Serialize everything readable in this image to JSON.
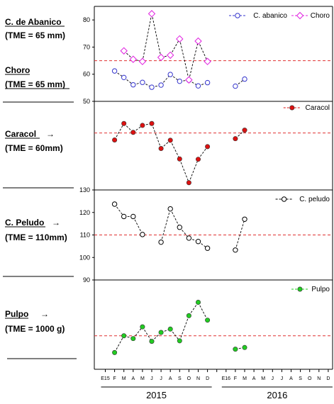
{
  "labels": {
    "abanico": "C. de Abanico",
    "abanico_tme": "(TME = 65 mm)",
    "choro": "Choro",
    "choro_tme": "(TME = 65 mm)",
    "caracol": "Caracol",
    "caracol_tme": "(TME = 60mm)",
    "peludo": "C. Peludo",
    "peludo_tme": "(TME = 110mm)",
    "pulpo": "Pulpo",
    "pulpo_tme": "(TME = 1000 g)",
    "arrow": "→"
  },
  "chart_data": {
    "type": "line",
    "months": [
      "E15",
      "F",
      "M",
      "A",
      "M",
      "J",
      "J",
      "A",
      "S",
      "O",
      "N",
      "D",
      "",
      "E16",
      "F",
      "M",
      "A",
      "M",
      "J",
      "J",
      "A",
      "S",
      "O",
      "N",
      "D"
    ],
    "years": [
      {
        "label": "2015",
        "from": 0,
        "to": 11
      },
      {
        "label": "2016",
        "from": 13,
        "to": 24
      }
    ],
    "panels": [
      {
        "id": "abanico-choro",
        "ylim": [
          50,
          85
        ],
        "yticks": [
          50,
          60,
          70,
          80
        ],
        "reference": 65,
        "series": [
          {
            "name": "C. abanico",
            "marker": "circle-open",
            "color": "#3333cc",
            "values": [
              null,
              61.2,
              58.8,
              56.1,
              57.0,
              55.2,
              56.0,
              59.9,
              57.4,
              57.8,
              55.7,
              56.9,
              null,
              null,
              55.6,
              58.2,
              null,
              null,
              null,
              null,
              null,
              null,
              null,
              null,
              null
            ]
          },
          {
            "name": "Choro",
            "marker": "diamond-open",
            "color": "#e020e0",
            "values": [
              null,
              null,
              68.6,
              65.5,
              64.7,
              82.3,
              66.2,
              67.0,
              73.0,
              57.9,
              72.2,
              64.7,
              null,
              null,
              null,
              null,
              null,
              null,
              null,
              null,
              null,
              null,
              null,
              null,
              null
            ]
          }
        ]
      },
      {
        "id": "caracol",
        "ylim": [
          null,
          null
        ],
        "yticks": [],
        "reference": 60,
        "series": [
          {
            "name": "Caracol",
            "marker": "circle-filled",
            "color": "#dd1111",
            "values": [
              null,
              57.8,
              63.0,
              60.2,
              62.4,
              63.0,
              55.1,
              57.7,
              51.8,
              44.3,
              51.7,
              55.7,
              null,
              null,
              58.2,
              60.9,
              null,
              null,
              null,
              null,
              null,
              null,
              null,
              null,
              null
            ]
          }
        ]
      },
      {
        "id": "peludo",
        "ylim": [
          90,
          130
        ],
        "yticks": [
          90,
          100,
          110,
          120,
          130
        ],
        "reference": 110,
        "series": [
          {
            "name": "C. peludo",
            "marker": "circle-open",
            "color": "#000000",
            "values": [
              null,
              123.7,
              118.2,
              118.2,
              110.2,
              null,
              106.8,
              121.6,
              113.4,
              108.6,
              107.1,
              104.1,
              null,
              null,
              103.3,
              117.0,
              null,
              null,
              null,
              null,
              null,
              null,
              null,
              null,
              null
            ]
          }
        ]
      },
      {
        "id": "pulpo",
        "ylim": [
          null,
          null
        ],
        "yticks": [],
        "reference": 1000,
        "series": [
          {
            "name": "Pulpo",
            "marker": "circle-filled",
            "color": "#22cc22",
            "values": [
              null,
              850,
              1000,
              975,
              1080,
              950,
              1030,
              1060,
              955,
              1180,
              1300,
              1140,
              null,
              null,
              880,
              895,
              null,
              null,
              null,
              null,
              null,
              null,
              null,
              null,
              null
            ]
          }
        ]
      }
    ]
  }
}
